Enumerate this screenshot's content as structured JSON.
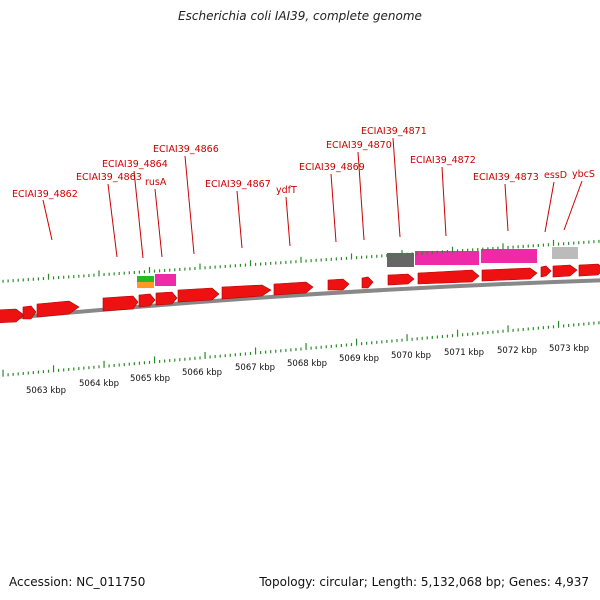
{
  "title": "Escherichia coli IAI39, complete genome",
  "footer": {
    "accession": "Accession: NC_011750",
    "summary": "Topology: circular; Length: 5,132,068 bp; Genes: 4,937"
  },
  "colors": {
    "gene": "#ee1111",
    "backbone": "#888888",
    "tick": "#2a8a2a",
    "label": "#cc0000",
    "pink_feature": "#ee2aa8",
    "dark_feature": "#666666",
    "light_feature": "#bbbbbb",
    "green_feature": "#22bb22",
    "orange_feature": "#ff9922"
  },
  "scale_labels": [
    "5063 kbp",
    "5064 kbp",
    "5065 kbp",
    "5066 kbp",
    "5067 kbp",
    "5068 kbp",
    "5069 kbp",
    "5070 kbp",
    "5071 kbp",
    "5072 kbp",
    "5073 kbp"
  ],
  "gene_labels": [
    {
      "text": "ECIAI39_4862"
    },
    {
      "text": "ECIAI39_4863"
    },
    {
      "text": "ECIAI39_4864"
    },
    {
      "text": "rusA"
    },
    {
      "text": "ECIAI39_4866"
    },
    {
      "text": "ECIAI39_4867"
    },
    {
      "text": "ydfT"
    },
    {
      "text": "ECIAI39_4869"
    },
    {
      "text": "ECIAI39_4870"
    },
    {
      "text": "ECIAI39_4871"
    },
    {
      "text": "ECIAI39_4872"
    },
    {
      "text": "ECIAI39_4873"
    },
    {
      "text": "essD"
    },
    {
      "text": "ybcS"
    }
  ]
}
